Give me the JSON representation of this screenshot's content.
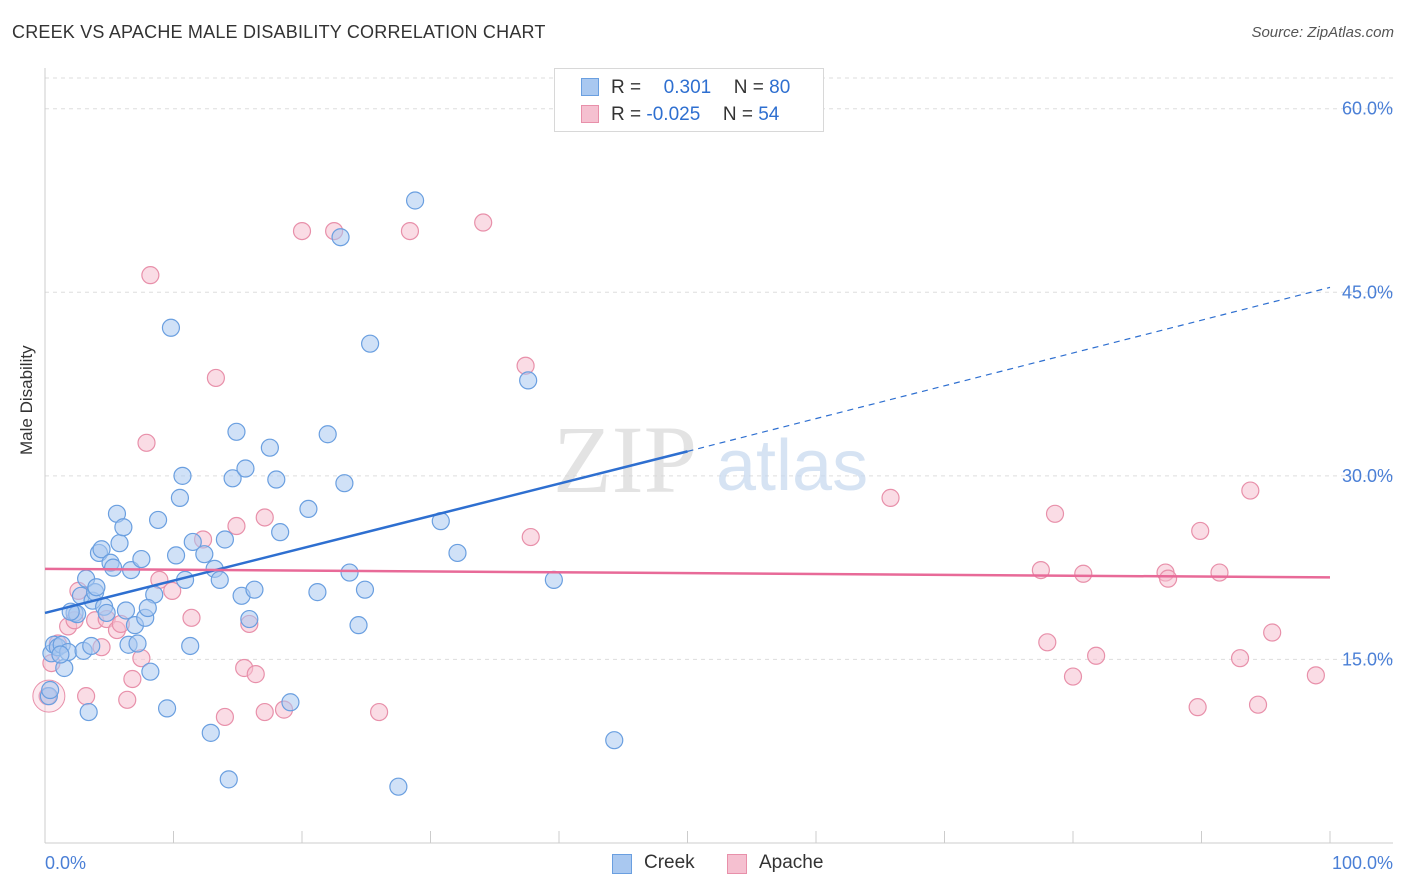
{
  "header": {
    "title": "CREEK VS APACHE MALE DISABILITY CORRELATION CHART",
    "source": "Source: ZipAtlas.com"
  },
  "colors": {
    "creek_fill": "#a9c8f0",
    "creek_stroke": "#6a9fe0",
    "creek_line": "#2e6fd0",
    "apache_fill": "#f5c0d0",
    "apache_stroke": "#e890aa",
    "apache_line": "#e86a98",
    "axis_label": "#4a7fd6",
    "grid": "#dddddd"
  },
  "legend_top": {
    "rows": [
      {
        "r_label": "R =",
        "r_value": "0.301",
        "n_label": "N =",
        "n_value": "80"
      },
      {
        "r_label": "R =",
        "r_value": "-0.025",
        "n_label": "N =",
        "n_value": "54"
      }
    ]
  },
  "legend_bottom": [
    "Creek",
    "Apache"
  ],
  "watermark": {
    "zip": "ZIP",
    "atlas": "atlas"
  },
  "chart_data": {
    "type": "scatter",
    "title": "CREEK VS APACHE MALE DISABILITY CORRELATION CHART",
    "xlabel": "",
    "ylabel": "Male Disability",
    "xlim": [
      0,
      100
    ],
    "ylim": [
      0,
      63
    ],
    "x_tick_labels": [
      "0.0%",
      "100.0%"
    ],
    "y_ticks": [
      15,
      30,
      45,
      60
    ],
    "y_tick_labels": [
      "15.0%",
      "30.0%",
      "45.0%",
      "60.0%"
    ],
    "grid": true,
    "legend_position": "top-center",
    "series": [
      {
        "name": "Creek",
        "r": 0.301,
        "n": 80,
        "trend": {
          "x0": 0,
          "y0": 18.8,
          "x1": 50,
          "y1": 32.0,
          "dash_to_x": 100,
          "dash_to_y": 45.4
        },
        "points": [
          [
            0.3,
            12.0
          ],
          [
            0.5,
            15.5
          ],
          [
            0.7,
            16.2
          ],
          [
            1.0,
            16.0
          ],
          [
            1.3,
            16.2
          ],
          [
            1.5,
            14.3
          ],
          [
            1.8,
            15.6
          ],
          [
            2.3,
            18.8
          ],
          [
            2.5,
            18.7
          ],
          [
            2.8,
            20.2
          ],
          [
            3.0,
            15.7
          ],
          [
            3.2,
            21.6
          ],
          [
            3.4,
            10.7
          ],
          [
            3.7,
            19.8
          ],
          [
            3.9,
            20.5
          ],
          [
            4.0,
            20.9
          ],
          [
            4.2,
            23.7
          ],
          [
            4.4,
            24.0
          ],
          [
            4.6,
            19.3
          ],
          [
            4.8,
            18.8
          ],
          [
            5.1,
            22.9
          ],
          [
            5.3,
            22.5
          ],
          [
            5.6,
            26.9
          ],
          [
            5.8,
            24.5
          ],
          [
            6.1,
            25.8
          ],
          [
            6.5,
            16.2
          ],
          [
            6.7,
            22.3
          ],
          [
            7.0,
            17.8
          ],
          [
            7.2,
            16.3
          ],
          [
            7.5,
            23.2
          ],
          [
            7.8,
            18.4
          ],
          [
            8.2,
            14.0
          ],
          [
            8.5,
            20.3
          ],
          [
            8.8,
            26.4
          ],
          [
            9.5,
            11.0
          ],
          [
            9.8,
            42.1
          ],
          [
            10.2,
            23.5
          ],
          [
            10.5,
            28.2
          ],
          [
            10.7,
            30.0
          ],
          [
            10.9,
            21.5
          ],
          [
            11.3,
            16.1
          ],
          [
            11.5,
            24.6
          ],
          [
            12.4,
            23.6
          ],
          [
            12.9,
            9.0
          ],
          [
            13.2,
            22.4
          ],
          [
            13.6,
            21.5
          ],
          [
            14.3,
            5.2
          ],
          [
            14.6,
            29.8
          ],
          [
            14.9,
            33.6
          ],
          [
            15.3,
            20.2
          ],
          [
            15.6,
            30.6
          ],
          [
            15.9,
            18.3
          ],
          [
            16.3,
            20.7
          ],
          [
            17.5,
            32.3
          ],
          [
            18.0,
            29.7
          ],
          [
            18.3,
            25.4
          ],
          [
            19.1,
            11.5
          ],
          [
            20.5,
            27.3
          ],
          [
            21.2,
            20.5
          ],
          [
            22.0,
            33.4
          ],
          [
            23.0,
            49.5
          ],
          [
            23.3,
            29.4
          ],
          [
            23.7,
            22.1
          ],
          [
            24.4,
            17.8
          ],
          [
            24.9,
            20.7
          ],
          [
            25.3,
            40.8
          ],
          [
            27.5,
            4.6
          ],
          [
            28.8,
            52.5
          ],
          [
            30.8,
            26.3
          ],
          [
            32.1,
            23.7
          ],
          [
            37.6,
            37.8
          ],
          [
            39.6,
            21.5
          ],
          [
            44.3,
            8.4
          ],
          [
            0.4,
            12.5
          ],
          [
            2.0,
            18.9
          ],
          [
            6.3,
            19.0
          ],
          [
            8.0,
            19.2
          ],
          [
            14.0,
            24.8
          ],
          [
            3.6,
            16.1
          ],
          [
            1.2,
            15.4
          ]
        ]
      },
      {
        "name": "Apache",
        "r": -0.025,
        "n": 54,
        "trend": {
          "x0": 0,
          "y0": 22.4,
          "x1": 100,
          "y1": 21.7
        },
        "points": [
          [
            0.2,
            12.0
          ],
          [
            0.5,
            14.7
          ],
          [
            1.0,
            16.3
          ],
          [
            1.8,
            17.7
          ],
          [
            2.3,
            18.2
          ],
          [
            2.6,
            20.6
          ],
          [
            3.2,
            12.0
          ],
          [
            3.9,
            18.2
          ],
          [
            4.4,
            16.0
          ],
          [
            4.8,
            18.3
          ],
          [
            5.6,
            17.4
          ],
          [
            5.9,
            17.9
          ],
          [
            6.4,
            11.7
          ],
          [
            6.8,
            13.4
          ],
          [
            7.5,
            15.1
          ],
          [
            7.9,
            32.7
          ],
          [
            8.2,
            46.4
          ],
          [
            8.9,
            21.5
          ],
          [
            9.9,
            20.6
          ],
          [
            11.4,
            18.4
          ],
          [
            12.3,
            24.8
          ],
          [
            13.3,
            38.0
          ],
          [
            14.0,
            10.3
          ],
          [
            14.9,
            25.9
          ],
          [
            15.5,
            14.3
          ],
          [
            15.9,
            17.9
          ],
          [
            16.4,
            13.8
          ],
          [
            17.1,
            26.6
          ],
          [
            17.1,
            10.7
          ],
          [
            18.6,
            10.9
          ],
          [
            20.0,
            50.0
          ],
          [
            22.5,
            50.0
          ],
          [
            26.0,
            10.7
          ],
          [
            28.4,
            50.0
          ],
          [
            34.1,
            50.7
          ],
          [
            37.4,
            39.0
          ],
          [
            37.8,
            25.0
          ],
          [
            65.8,
            28.2
          ],
          [
            77.5,
            22.3
          ],
          [
            78.0,
            16.4
          ],
          [
            78.6,
            26.9
          ],
          [
            80.0,
            13.6
          ],
          [
            80.8,
            22.0
          ],
          [
            81.8,
            15.3
          ],
          [
            87.2,
            22.1
          ],
          [
            87.4,
            21.6
          ],
          [
            89.7,
            11.1
          ],
          [
            89.9,
            25.5
          ],
          [
            91.4,
            22.1
          ],
          [
            93.0,
            15.1
          ],
          [
            93.8,
            28.8
          ],
          [
            94.4,
            11.3
          ],
          [
            95.5,
            17.2
          ],
          [
            98.9,
            13.7
          ]
        ]
      }
    ]
  }
}
